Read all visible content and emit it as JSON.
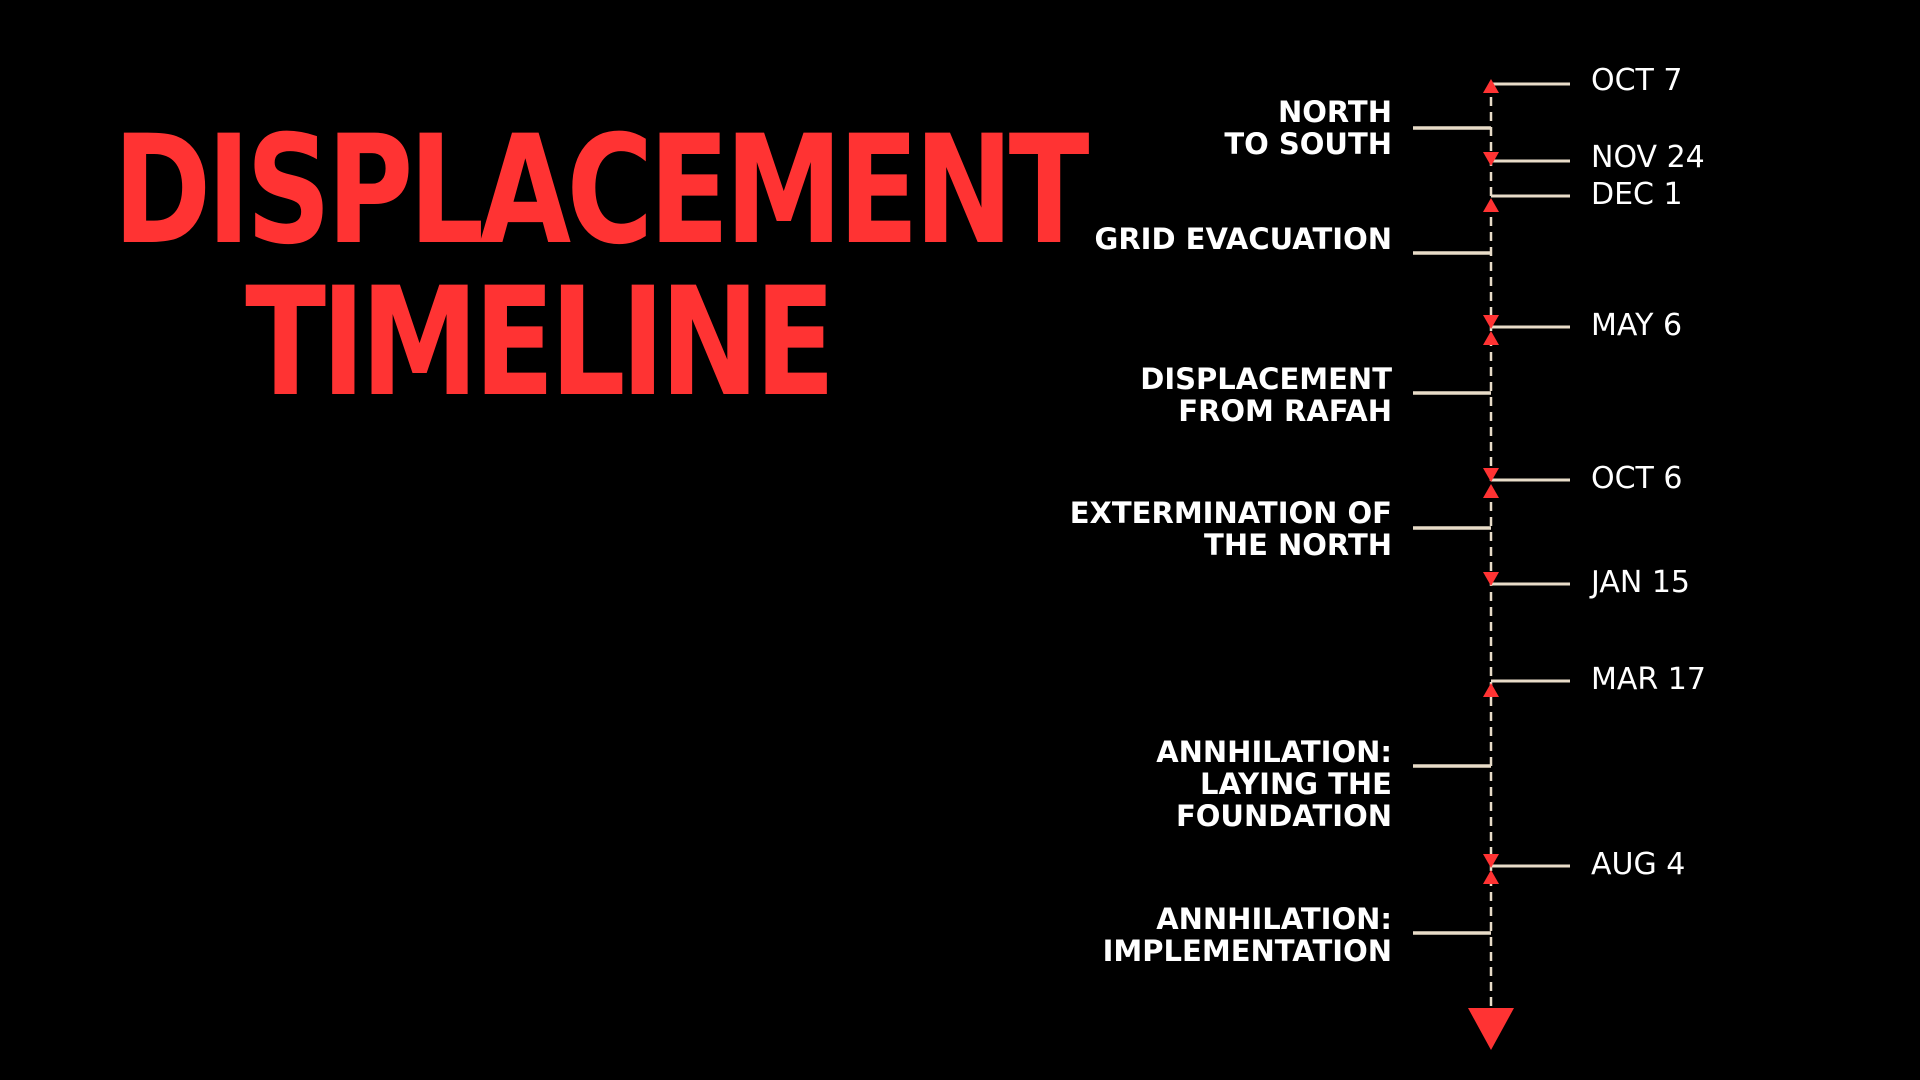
{
  "title": {
    "line1": "DISPLACEMENT",
    "line2": "TIMELINE"
  },
  "colors": {
    "background": "#000000",
    "accent": "#ff3333",
    "text": "#ffffff",
    "connector": "#e8dcc8"
  },
  "dates": [
    "OCT 7",
    "NOV 24",
    "DEC 1",
    "MAY 6",
    "OCT 6",
    "JAN 15",
    "MAR 17",
    "AUG 4"
  ],
  "events": [
    "NORTH\nTO SOUTH",
    "GRID EVACUATION",
    "DISPLACEMENT\nFROM RAFAH",
    "EXTERMINATION OF\nTHE NORTH",
    "ANNHILATION:\nLAYING THE\nFOUNDATION",
    "ANNHILATION:\nIMPLEMENTATION"
  ]
}
